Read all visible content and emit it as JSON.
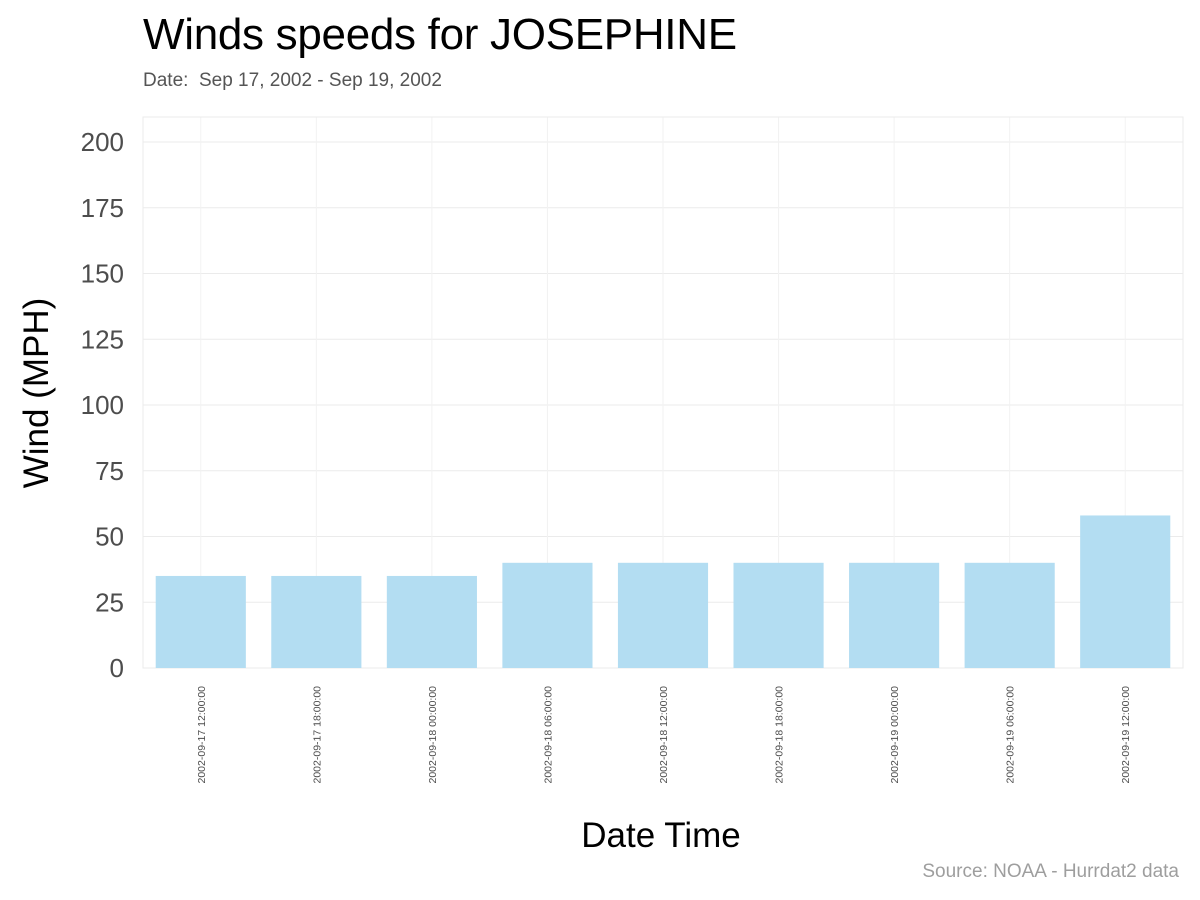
{
  "header": {
    "title": "Winds speeds for JOSEPHINE",
    "subtitle": "Date:  Sep 17, 2002 - Sep 19, 2002"
  },
  "caption": "Source: NOAA - Hurrdat2 data",
  "colors": {
    "bar": "#b3ddf2",
    "grid": "#ebebeb",
    "panel_border": "#ebebeb",
    "tick_text": "#4d4d4d",
    "axis_title": "#000000"
  },
  "chart_data": {
    "type": "bar",
    "title": "Winds speeds for JOSEPHINE",
    "subtitle": "Date:  Sep 17, 2002 - Sep 19, 2002",
    "xlabel": "Date Time",
    "ylabel": "Wind (MPH)",
    "ylim": [
      0,
      210
    ],
    "yticks": [
      0,
      25,
      50,
      75,
      100,
      125,
      150,
      175,
      200
    ],
    "grid": true,
    "legend": "none",
    "categories": [
      "2002-09-17 12:00:00",
      "2002-09-17 18:00:00",
      "2002-09-18 00:00:00",
      "2002-09-18 06:00:00",
      "2002-09-18 12:00:00",
      "2002-09-18 18:00:00",
      "2002-09-19 00:00:00",
      "2002-09-19 06:00:00",
      "2002-09-19 12:00:00"
    ],
    "values": [
      35,
      35,
      35,
      40,
      40,
      40,
      40,
      40,
      58
    ]
  }
}
